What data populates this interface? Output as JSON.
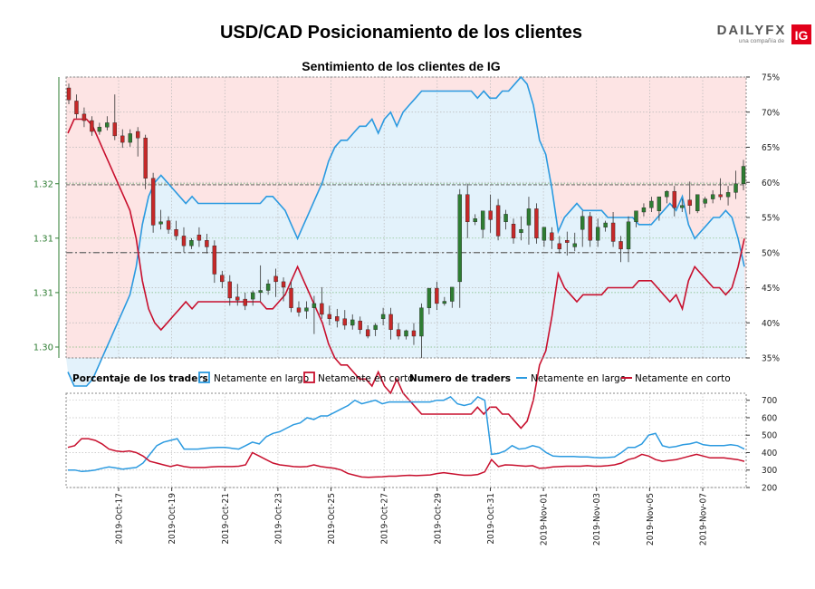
{
  "header": {
    "title": "USD/CAD Posicionamiento de los clientes",
    "brand_name": "DAILYFX",
    "brand_tagline": "una compañía de",
    "brand_badge": "IG"
  },
  "chart_data": [
    {
      "type": "candlestick",
      "title": "Sentimiento de los clientes de IG",
      "ylim_price": [
        1.301,
        1.3268
      ],
      "left_ticks": [
        {
          "value": 1.302,
          "label": "1.30"
        },
        {
          "value": 1.307,
          "label": "1.31"
        },
        {
          "value": 1.312,
          "label": "1.31"
        },
        {
          "value": 1.317,
          "label": "1.32"
        }
      ],
      "ylim_pct": [
        35,
        75
      ],
      "right_ticks": [
        35,
        40,
        45,
        50,
        55,
        60,
        65,
        70,
        75
      ],
      "right_tick_format": "%",
      "colors": {
        "up": "#2e7d32",
        "down": "#c62828",
        "long": "#2b9ae0",
        "short": "#c8102e"
      },
      "candles": [
        [
          1.3258,
          1.3262,
          1.3247,
          1.3243
        ],
        [
          1.3246,
          1.3252,
          1.3234,
          1.323
        ],
        [
          1.3234,
          1.324,
          1.3228,
          1.3222
        ],
        [
          1.3228,
          1.3232,
          1.3218,
          1.3214
        ],
        [
          1.3218,
          1.3226,
          1.3222,
          1.3215
        ],
        [
          1.3222,
          1.3232,
          1.3226,
          1.3219
        ],
        [
          1.3226,
          1.3252,
          1.3214,
          1.321
        ],
        [
          1.3214,
          1.322,
          1.3208,
          1.3203
        ],
        [
          1.3208,
          1.322,
          1.3216,
          1.3204
        ],
        [
          1.3218,
          1.3222,
          1.3212,
          1.3195
        ],
        [
          1.3212,
          1.3215,
          1.3175,
          1.3165
        ],
        [
          1.3175,
          1.318,
          1.3132,
          1.3125
        ],
        [
          1.3133,
          1.3146,
          1.3135,
          1.3128
        ],
        [
          1.3136,
          1.314,
          1.3128,
          1.3124
        ],
        [
          1.3128,
          1.3136,
          1.3122,
          1.3118
        ],
        [
          1.3122,
          1.313,
          1.3113,
          1.3107
        ],
        [
          1.3113,
          1.312,
          1.3118,
          1.311
        ],
        [
          1.3123,
          1.313,
          1.3118,
          1.3112
        ],
        [
          1.3118,
          1.3124,
          1.3112,
          1.3106
        ],
        [
          1.3113,
          1.3118,
          1.3087,
          1.3079
        ],
        [
          1.3086,
          1.309,
          1.308,
          1.3074
        ],
        [
          1.308,
          1.3086,
          1.3065,
          1.3058
        ],
        [
          1.3066,
          1.3078,
          1.3063,
          1.3058
        ],
        [
          1.3064,
          1.307,
          1.3058,
          1.3054
        ],
        [
          1.3064,
          1.3072,
          1.307,
          1.3058
        ],
        [
          1.307,
          1.3095,
          1.3072,
          1.3062
        ],
        [
          1.3072,
          1.3082,
          1.3078,
          1.3068
        ],
        [
          1.3085,
          1.3092,
          1.308,
          1.3066
        ],
        [
          1.308,
          1.3084,
          1.3075,
          1.3062
        ],
        [
          1.3074,
          1.308,
          1.3056,
          1.3052
        ],
        [
          1.3056,
          1.3062,
          1.3052,
          1.3048
        ],
        [
          1.3053,
          1.3062,
          1.3056,
          1.3046
        ],
        [
          1.3056,
          1.3067,
          1.306,
          1.3032
        ],
        [
          1.306,
          1.3075,
          1.305,
          1.3046
        ],
        [
          1.305,
          1.3058,
          1.3046,
          1.304
        ],
        [
          1.3048,
          1.3055,
          1.3044,
          1.3038
        ],
        [
          1.3046,
          1.3054,
          1.304,
          1.3036
        ],
        [
          1.304,
          1.305,
          1.3045,
          1.3036
        ],
        [
          1.3044,
          1.3048,
          1.3036,
          1.3032
        ],
        [
          1.3036,
          1.304,
          1.303,
          1.3028
        ],
        [
          1.3036,
          1.3042,
          1.304,
          1.303
        ],
        [
          1.3046,
          1.3056,
          1.305,
          1.304
        ],
        [
          1.305,
          1.3056,
          1.3036,
          1.3027
        ],
        [
          1.3036,
          1.3042,
          1.303,
          1.3027
        ],
        [
          1.303,
          1.3036,
          1.3035,
          1.3027
        ],
        [
          1.3035,
          1.3042,
          1.303,
          1.3022
        ],
        [
          1.303,
          1.306,
          1.3056,
          1.301
        ],
        [
          1.3056,
          1.307,
          1.3074,
          1.305
        ],
        [
          1.3074,
          1.308,
          1.306,
          1.3054
        ],
        [
          1.306,
          1.3066,
          1.3062,
          1.3058
        ],
        [
          1.3062,
          1.3068,
          1.3075,
          1.3056
        ],
        [
          1.308,
          1.3165,
          1.316,
          1.3056
        ],
        [
          1.316,
          1.317,
          1.3135,
          1.312
        ],
        [
          1.3135,
          1.3142,
          1.3138,
          1.3132
        ],
        [
          1.3128,
          1.314,
          1.3145,
          1.312
        ],
        [
          1.3145,
          1.316,
          1.3137,
          1.3125
        ],
        [
          1.315,
          1.3156,
          1.3122,
          1.3118
        ],
        [
          1.3135,
          1.3146,
          1.3142,
          1.3128
        ],
        [
          1.3133,
          1.3138,
          1.312,
          1.3115
        ],
        [
          1.3125,
          1.314,
          1.3128,
          1.3118
        ],
        [
          1.3132,
          1.3158,
          1.3147,
          1.3114
        ],
        [
          1.3147,
          1.3152,
          1.312,
          1.3115
        ],
        [
          1.3118,
          1.3126,
          1.313,
          1.3112
        ],
        [
          1.3125,
          1.313,
          1.3118,
          1.311
        ],
        [
          1.3115,
          1.3122,
          1.311,
          1.3106
        ],
        [
          1.3118,
          1.3126,
          1.3116,
          1.3104
        ],
        [
          1.3112,
          1.3125,
          1.3115,
          1.3108
        ],
        [
          1.3128,
          1.3145,
          1.314,
          1.3112
        ],
        [
          1.314,
          1.3144,
          1.3118,
          1.3112
        ],
        [
          1.3118,
          1.3138,
          1.313,
          1.3112
        ],
        [
          1.313,
          1.3136,
          1.3134,
          1.3126
        ],
        [
          1.3134,
          1.3144,
          1.3117,
          1.3112
        ],
        [
          1.3117,
          1.3122,
          1.311,
          1.3098
        ],
        [
          1.311,
          1.314,
          1.3135,
          1.3098
        ],
        [
          1.3135,
          1.314,
          1.3145,
          1.313
        ],
        [
          1.3144,
          1.3152,
          1.3148,
          1.314
        ],
        [
          1.3148,
          1.3158,
          1.3154,
          1.3144
        ],
        [
          1.3145,
          1.3152,
          1.3158,
          1.3136
        ],
        [
          1.3158,
          1.3164,
          1.3163,
          1.3152
        ],
        [
          1.3163,
          1.3168,
          1.3148,
          1.314
        ],
        [
          1.3148,
          1.3156,
          1.315,
          1.3144
        ],
        [
          1.3155,
          1.3172,
          1.315,
          1.3142
        ],
        [
          1.3145,
          1.3155,
          1.316,
          1.3143
        ],
        [
          1.3152,
          1.3158,
          1.3156,
          1.3148
        ],
        [
          1.3156,
          1.3164,
          1.316,
          1.3152
        ],
        [
          1.316,
          1.3175,
          1.3158,
          1.3155
        ],
        [
          1.3158,
          1.3168,
          1.3162,
          1.315
        ],
        [
          1.3162,
          1.3182,
          1.317,
          1.3156
        ],
        [
          1.317,
          1.3192,
          1.3186,
          1.3164
        ]
      ],
      "long_pct": [
        33,
        31,
        31,
        31,
        32,
        34,
        36,
        38,
        40,
        42,
        44,
        48,
        54,
        58,
        60,
        61,
        60,
        59,
        58,
        57,
        58,
        57,
        57,
        57,
        57,
        57,
        57,
        57,
        57,
        57,
        57,
        57,
        58,
        58,
        57,
        56,
        54,
        52,
        54,
        56,
        58,
        60,
        63,
        65,
        66,
        66,
        67,
        68,
        68,
        69,
        67,
        69,
        70,
        68,
        70,
        71,
        72,
        73,
        73,
        73,
        73,
        73,
        73,
        73,
        73,
        73,
        72,
        73,
        72,
        72,
        73,
        73,
        74,
        75,
        74,
        71,
        66,
        64,
        59,
        53,
        55,
        56,
        57,
        56,
        56,
        56,
        56,
        55,
        55,
        55,
        55,
        55,
        54,
        54,
        54,
        55,
        56,
        57,
        56,
        58,
        54,
        52,
        53,
        54,
        55,
        55,
        56,
        55,
        52,
        48
      ],
      "short_pct": [
        67,
        69,
        69,
        69,
        68,
        66,
        64,
        62,
        60,
        58,
        56,
        52,
        46,
        42,
        40,
        39,
        40,
        41,
        42,
        43,
        42,
        43,
        43,
        43,
        43,
        43,
        43,
        43,
        43,
        43,
        43,
        43,
        42,
        42,
        43,
        44,
        46,
        48,
        46,
        44,
        42,
        40,
        37,
        35,
        34,
        34,
        33,
        32,
        32,
        31,
        33,
        31,
        30,
        32,
        30,
        29,
        28,
        27,
        27,
        27,
        27,
        27,
        27,
        27,
        27,
        27,
        28,
        27,
        28,
        28,
        27,
        27,
        26,
        25,
        26,
        29,
        34,
        36,
        41,
        47,
        45,
        44,
        43,
        44,
        44,
        44,
        44,
        45,
        45,
        45,
        45,
        45,
        46,
        46,
        46,
        45,
        44,
        43,
        44,
        42,
        46,
        48,
        47,
        46,
        45,
        45,
        44,
        45,
        48,
        52
      ],
      "sentiment_note": "Porcentaje de los traders"
    },
    {
      "type": "line",
      "title": "Numero de traders",
      "ylim": [
        200,
        740
      ],
      "yticks": [
        200,
        300,
        400,
        500,
        600,
        700
      ],
      "x_tick_labels": [
        "2019-Oct-17",
        "2019-Oct-19",
        "2019-Oct-21",
        "2019-Oct-23",
        "2019-Oct-25",
        "2019-Oct-27",
        "2019-Oct-29",
        "2019-Oct-31",
        "2019-Nov-01",
        "2019-Nov-03",
        "2019-Nov-05",
        "2019-Nov-07"
      ],
      "series": [
        {
          "name": "Netamente en largo",
          "color": "#2b9ae0",
          "values": [
            300,
            300,
            292,
            295,
            300,
            310,
            318,
            312,
            305,
            310,
            315,
            340,
            390,
            440,
            460,
            470,
            480,
            420,
            420,
            420,
            425,
            428,
            430,
            430,
            425,
            420,
            440,
            460,
            450,
            490,
            510,
            520,
            540,
            560,
            570,
            600,
            590,
            610,
            610,
            630,
            650,
            670,
            700,
            680,
            690,
            700,
            680,
            690,
            690,
            690,
            690,
            690,
            690,
            690,
            700,
            700,
            720,
            680,
            670,
            680,
            720,
            700,
            390,
            395,
            410,
            440,
            420,
            425,
            440,
            430,
            400,
            380,
            378,
            378,
            378,
            375,
            375,
            372,
            370,
            372,
            375,
            400,
            430,
            430,
            450,
            500,
            510,
            440,
            430,
            435,
            445,
            450,
            460,
            445,
            440,
            440,
            440,
            445,
            440,
            420
          ]
        },
        {
          "name": "Netamente en corto",
          "color": "#c8102e",
          "values": [
            430,
            440,
            480,
            480,
            470,
            450,
            420,
            410,
            405,
            410,
            400,
            380,
            350,
            340,
            330,
            320,
            330,
            320,
            315,
            315,
            315,
            318,
            320,
            320,
            320,
            322,
            330,
            400,
            380,
            360,
            340,
            330,
            325,
            320,
            318,
            320,
            330,
            320,
            315,
            310,
            300,
            280,
            270,
            260,
            258,
            260,
            262,
            265,
            265,
            268,
            270,
            268,
            270,
            272,
            280,
            285,
            280,
            275,
            270,
            270,
            275,
            290,
            360,
            320,
            330,
            328,
            325,
            322,
            325,
            310,
            312,
            318,
            320,
            322,
            322,
            322,
            325,
            322,
            322,
            325,
            330,
            340,
            360,
            370,
            390,
            380,
            360,
            350,
            355,
            360,
            370,
            380,
            390,
            380,
            370,
            370,
            370,
            365,
            360,
            350
          ]
        }
      ]
    }
  ],
  "legend": {
    "sentiment_label": "Porcentaje de los traders",
    "long_label": "Netamente en largo",
    "short_label": "Netamente en corto",
    "traders_label": "Numero de traders"
  }
}
